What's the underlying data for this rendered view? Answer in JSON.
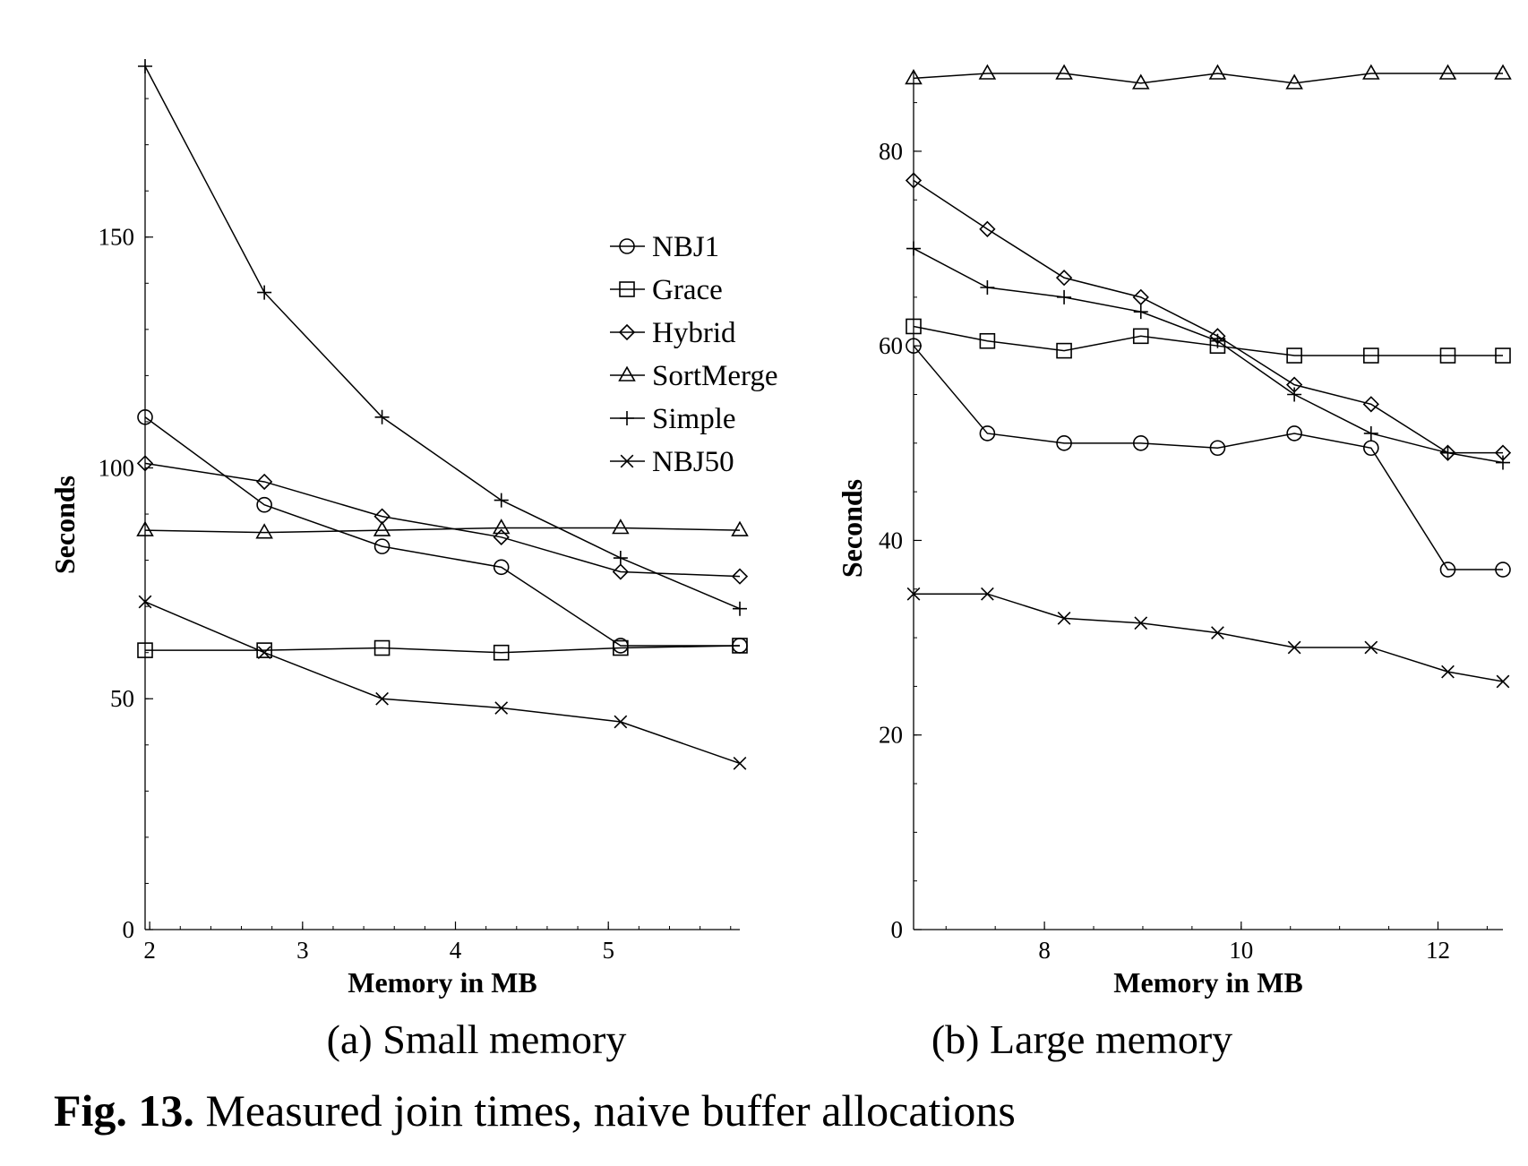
{
  "caption": {
    "label": "Fig. 13.",
    "text": " Measured join times, naive buffer allocations"
  },
  "markers": {
    "NBJ1": "circle",
    "Grace": "square",
    "Hybrid": "diamond",
    "SortMerge": "triangle",
    "Simple": "plus",
    "NBJ50": "cross"
  },
  "chart_data": [
    {
      "type": "line",
      "subcaption": "(a) Small memory",
      "xlabel": "Memory in MB",
      "ylabel": "Seconds",
      "xlim": [
        1.97,
        5.86
      ],
      "ylim": [
        0,
        187
      ],
      "xticks": [
        2,
        3,
        4,
        5
      ],
      "yticks": [
        0,
        50,
        100,
        150
      ],
      "x": [
        1.97,
        2.75,
        3.52,
        4.3,
        5.08,
        5.86
      ],
      "legend": [
        "NBJ1",
        "Grace",
        "Hybrid",
        "SortMerge",
        "Simple",
        "NBJ50"
      ],
      "series": [
        {
          "name": "Simple",
          "values": [
            187,
            138,
            111,
            93,
            80.5,
            69.5
          ]
        },
        {
          "name": "NBJ1",
          "values": [
            111,
            92,
            83,
            78.5,
            61.5,
            61.5
          ]
        },
        {
          "name": "Hybrid",
          "values": [
            101,
            97,
            89.5,
            85,
            77.5,
            76.5
          ]
        },
        {
          "name": "SortMerge",
          "values": [
            86.5,
            86,
            86.5,
            87,
            87,
            86.5
          ]
        },
        {
          "name": "Grace",
          "values": [
            60.5,
            60.5,
            61,
            60,
            61,
            61.5
          ]
        },
        {
          "name": "NBJ50",
          "values": [
            71,
            60,
            50,
            48,
            45,
            36
          ]
        }
      ]
    },
    {
      "type": "line",
      "subcaption": "(b) Large memory",
      "xlabel": "Memory in MB",
      "ylabel": "Seconds",
      "xlim": [
        6.67,
        12.66
      ],
      "ylim": [
        0,
        88
      ],
      "xticks": [
        8,
        10,
        12
      ],
      "yticks": [
        0,
        20,
        40,
        60,
        80
      ],
      "x": [
        6.67,
        7.42,
        8.2,
        8.98,
        9.76,
        10.54,
        11.32,
        12.1,
        12.66
      ],
      "series": [
        {
          "name": "SortMerge",
          "values": [
            87.5,
            88,
            88,
            87,
            88,
            87,
            88,
            88,
            88
          ]
        },
        {
          "name": "Hybrid",
          "values": [
            77,
            72,
            67,
            65,
            61,
            56,
            54,
            49,
            49
          ]
        },
        {
          "name": "Simple",
          "values": [
            70,
            66,
            65,
            63.5,
            60.5,
            55,
            51,
            49,
            48
          ]
        },
        {
          "name": "Grace",
          "values": [
            62,
            60.5,
            59.5,
            61,
            60,
            59,
            59,
            59,
            59
          ]
        },
        {
          "name": "NBJ1",
          "values": [
            60,
            51,
            50,
            50,
            49.5,
            51,
            49.5,
            37,
            37
          ]
        },
        {
          "name": "NBJ50",
          "values": [
            34.5,
            34.5,
            32,
            31.5,
            30.5,
            29,
            29,
            26.5,
            25.5
          ]
        }
      ]
    }
  ]
}
